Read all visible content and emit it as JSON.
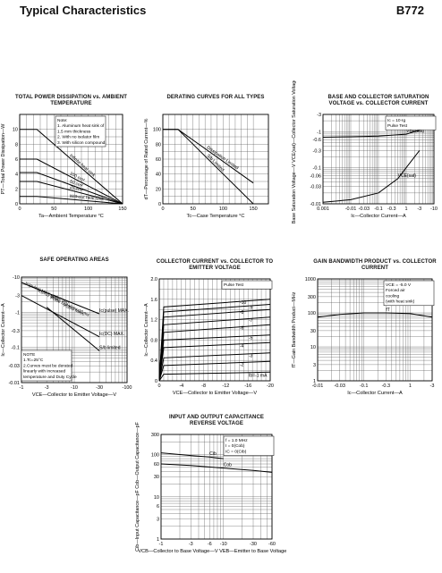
{
  "header": {
    "title": "Typical Characteristics",
    "part_number": "B772"
  },
  "chart_data": [
    {
      "id": "c1",
      "type": "line",
      "title": "TOTAL POWER DISSIPATION vs. AMBIENT TEMPERATURE",
      "xlabel": "Ta—Ambient Temperature   °C",
      "ylabel": "PT—Total Power Dissipation—W",
      "xlim": [
        0,
        150
      ],
      "ylim": [
        0,
        12
      ],
      "xticks": [
        "0",
        "50",
        "100",
        "150"
      ],
      "yticks": [
        "0",
        "2",
        "4",
        "6",
        "8",
        "10"
      ],
      "notes": [
        "Note:",
        "1. Aluminum heat sink of",
        "   1.5 mm thickness",
        "2. With no isolator film",
        "3. With silicon compound."
      ],
      "series": [
        {
          "name": "Infinite heat sink",
          "x": [
            0,
            25,
            150
          ],
          "y": [
            10,
            10,
            0
          ]
        },
        {
          "name": "100 cm²",
          "x": [
            0,
            25,
            150
          ],
          "y": [
            6,
            6,
            0
          ]
        },
        {
          "name": "50 cm²",
          "x": [
            0,
            25,
            150
          ],
          "y": [
            4.2,
            4.2,
            0
          ]
        },
        {
          "name": "25 cm²",
          "x": [
            0,
            25,
            150
          ],
          "y": [
            3,
            3,
            0
          ]
        },
        {
          "name": "Without heat sink",
          "x": [
            0,
            25,
            150
          ],
          "y": [
            1,
            1,
            0
          ]
        }
      ]
    },
    {
      "id": "c2",
      "type": "line",
      "title": "DERATING CURVES FOR ALL TYPES",
      "xlabel": "Tc—Case Temperature   °C",
      "ylabel": "dT—Percentage of Rated Current—%",
      "xlim": [
        0,
        175
      ],
      "ylim": [
        0,
        120
      ],
      "xticks": [
        "0",
        "50",
        "100",
        "150"
      ],
      "yticks": [
        "0",
        "20",
        "40",
        "60",
        "80",
        "100"
      ],
      "series": [
        {
          "name": "S/b Limited",
          "x": [
            0,
            25,
            150
          ],
          "y": [
            100,
            100,
            0
          ]
        },
        {
          "name": "Dissipation Limited",
          "x": [
            0,
            25,
            150
          ],
          "y": [
            100,
            100,
            28
          ]
        }
      ]
    },
    {
      "id": "c3",
      "type": "line",
      "title": "BASE AND COLLECTOR SATURATION VOLTAGE vs. COLLECTOR CURRENT",
      "xlabel": "Ic—Collector Current—A",
      "ylabel": "VBE(sat)—Base Saturation Voltage—V  VCE(sat)—Collector Saturation Voltage—V",
      "xscale": "log",
      "yscale": "log",
      "xticks": [
        "0.001",
        "-0.01",
        "-0.03",
        "-0.1",
        "-0.3",
        "1",
        "-3",
        "-10"
      ],
      "yticks": [
        "-0.01",
        "-0.03",
        "-0.06",
        "-0.1",
        "-0.3",
        "-0.6",
        "-1",
        "-3"
      ],
      "legend_text": [
        "Ic = 10·Ig",
        "Pulse Test"
      ],
      "series": [
        {
          "name": "VBE(sat)",
          "x": [
            0.001,
            0.01,
            0.1,
            1,
            3,
            10
          ],
          "y": [
            0.7,
            0.72,
            0.75,
            0.85,
            1.1,
            1.6
          ]
        },
        {
          "name": "VCE(sat)",
          "x": [
            0.001,
            0.01,
            0.1,
            0.5,
            1,
            3
          ],
          "y": [
            0.011,
            0.013,
            0.02,
            0.05,
            0.1,
            0.3
          ]
        }
      ]
    },
    {
      "id": "c4",
      "type": "line",
      "title": "SAFE OPERATING AREAS",
      "xlabel": "VCE—Collector to Emitter Voltage—V",
      "ylabel": "Ic—Collector Current—A",
      "xscale": "log",
      "yscale": "log",
      "xticks": [
        "-1",
        "-3",
        "-10",
        "-30",
        "-100"
      ],
      "yticks": [
        "-0.01",
        "-0.03",
        "-0.1",
        "-0.3",
        "-1",
        "-3",
        "-10"
      ],
      "labels": [
        "Ic(pulse) MAX. (10.0 ms)",
        "Ic(DC) MAX.",
        "Pulse Duration=10 ms",
        "VCEO MAX."
      ],
      "notes": [
        "NOTE",
        "1.Tc=25°C",
        "2.Curves must be derated",
        "  linearly with increased",
        "  temperature and Duty Cycle"
      ],
      "series": [
        {
          "name": "Ic(pulse) MAX.",
          "x": [
            1,
            30
          ],
          "y": [
            7,
            0.9
          ]
        },
        {
          "name": "Ic(DC) MAX.",
          "x": [
            1,
            30
          ],
          "y": [
            3,
            0.2
          ]
        },
        {
          "name": "S/b limited",
          "x": [
            3,
            30
          ],
          "y": [
            1.4,
            0.08
          ]
        }
      ]
    },
    {
      "id": "c5",
      "type": "line",
      "title": "COLLECTOR CURRENT vs. COLLECTOR TO EMITTER VOLTAGE",
      "xlabel": "VCE—Collector to Emitter Voltage—V",
      "ylabel": "Ic—Collector Current—A",
      "xlim": [
        0,
        -20
      ],
      "ylim": [
        0,
        2.0
      ],
      "xticks": [
        "0",
        "-4",
        "-8",
        "-12",
        "-16",
        "-20"
      ],
      "yticks": [
        "0",
        "0.4",
        "0.8",
        "1.2",
        "1.6",
        "2.0"
      ],
      "legend_text": [
        "Pulse Test"
      ],
      "series": [
        {
          "name": "-10",
          "x": [
            0,
            -0.8,
            -20
          ],
          "y": [
            0,
            1.45,
            1.6
          ]
        },
        {
          "name": "-9",
          "x": [
            0,
            -0.8,
            -20
          ],
          "y": [
            0,
            1.35,
            1.5
          ]
        },
        {
          "name": "-8",
          "x": [
            0,
            -0.8,
            -20
          ],
          "y": [
            0,
            1.25,
            1.4
          ]
        },
        {
          "name": "-7",
          "x": [
            0,
            -0.8,
            -20
          ],
          "y": [
            0,
            1.1,
            1.25
          ]
        },
        {
          "name": "-6",
          "x": [
            0,
            -0.8,
            -20
          ],
          "y": [
            0,
            0.95,
            1.1
          ]
        },
        {
          "name": "-5",
          "x": [
            0,
            -0.8,
            -20
          ],
          "y": [
            0,
            0.8,
            0.9
          ]
        },
        {
          "name": "-4",
          "x": [
            0,
            -0.8,
            -20
          ],
          "y": [
            0,
            0.65,
            0.75
          ]
        },
        {
          "name": "-3",
          "x": [
            0,
            -0.8,
            -20
          ],
          "y": [
            0,
            0.45,
            0.55
          ]
        },
        {
          "name": "-2",
          "x": [
            0,
            -0.8,
            -20
          ],
          "y": [
            0,
            0.3,
            0.38
          ]
        },
        {
          "name": "Ib=-1 mA",
          "x": [
            0,
            -0.8,
            -20
          ],
          "y": [
            0,
            0.13,
            0.17
          ]
        }
      ]
    },
    {
      "id": "c6",
      "type": "line",
      "title": "GAIN BANDWIDTH PRODUCT vs. COLLECTOR CURRENT",
      "xlabel": "Ic—Collector Current—A",
      "ylabel": "fT—Gain Bandwidth Product—MHz",
      "xscale": "log",
      "yscale": "log",
      "xticks": [
        "-0.01",
        "-0.03",
        "-0.1",
        "-0.3",
        "1",
        "-3"
      ],
      "yticks": [
        "1",
        "3",
        "10",
        "30",
        "100",
        "300",
        "1000"
      ],
      "legend_text": [
        "VCE = -5.0 V",
        "Forced air",
        "cooling",
        "(with heat sink)"
      ],
      "series": [
        {
          "name": "fT",
          "x": [
            0.01,
            0.03,
            0.1,
            0.3,
            1,
            3
          ],
          "y": [
            75,
            90,
            100,
            100,
            95,
            75
          ]
        }
      ]
    },
    {
      "id": "c7",
      "type": "line",
      "title": "INPUT AND OUTPUT CAPACITANCE REVERSE VOLTAGE",
      "xlabel": "VCB—Collector to Base Voltage—V  VEB—Emitter to Base Voltage—V",
      "ylabel": "Cib—Input Capacitance—pF  Cob—Output Capacitance—pF",
      "xscale": "log",
      "yscale": "log",
      "xticks": [
        "-1",
        "-3",
        "-6",
        "-10",
        "-30",
        "-60"
      ],
      "yticks": [
        "1",
        "3",
        "6",
        "10",
        "30",
        "60",
        "100",
        "300"
      ],
      "legend_text": [
        "f = 1.0 MHz",
        "I = 0(Cob)",
        "IC = 0(Cib)"
      ],
      "series": [
        {
          "name": "Cib",
          "x": [
            1,
            3,
            6,
            10
          ],
          "y": [
            110,
            95,
            88,
            80
          ]
        },
        {
          "name": "Cob",
          "x": [
            1,
            3,
            10,
            30,
            60
          ],
          "y": [
            60,
            55,
            48,
            42,
            38
          ]
        }
      ]
    }
  ]
}
